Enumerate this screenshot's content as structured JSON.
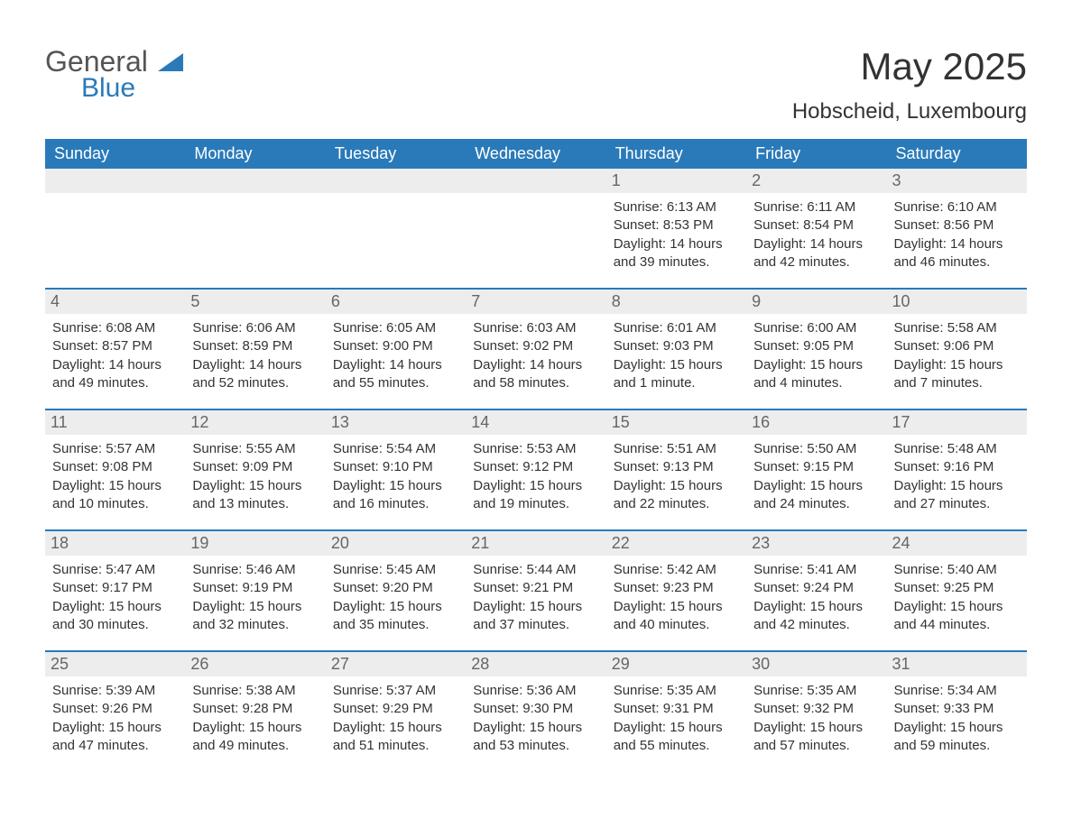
{
  "brand": {
    "general": "General",
    "blue": "Blue"
  },
  "title": {
    "month": "May 2025",
    "location": "Hobscheid, Luxembourg"
  },
  "colors": {
    "header_bg": "#2a7ab9",
    "header_text": "#ffffff",
    "daynum_bg": "#ededed",
    "daynum_text": "#666666",
    "rule": "#2a7ab9",
    "body_text": "#333333"
  },
  "day_headers": [
    "Sunday",
    "Monday",
    "Tuesday",
    "Wednesday",
    "Thursday",
    "Friday",
    "Saturday"
  ],
  "weeks": [
    [
      {
        "n": "",
        "sunrise": "",
        "sunset": "",
        "daylight": "",
        "empty": true
      },
      {
        "n": "",
        "sunrise": "",
        "sunset": "",
        "daylight": "",
        "empty": true
      },
      {
        "n": "",
        "sunrise": "",
        "sunset": "",
        "daylight": "",
        "empty": true
      },
      {
        "n": "",
        "sunrise": "",
        "sunset": "",
        "daylight": "",
        "empty": true
      },
      {
        "n": "1",
        "sunrise": "Sunrise: 6:13 AM",
        "sunset": "Sunset: 8:53 PM",
        "daylight": "Daylight: 14 hours and 39 minutes."
      },
      {
        "n": "2",
        "sunrise": "Sunrise: 6:11 AM",
        "sunset": "Sunset: 8:54 PM",
        "daylight": "Daylight: 14 hours and 42 minutes."
      },
      {
        "n": "3",
        "sunrise": "Sunrise: 6:10 AM",
        "sunset": "Sunset: 8:56 PM",
        "daylight": "Daylight: 14 hours and 46 minutes."
      }
    ],
    [
      {
        "n": "4",
        "sunrise": "Sunrise: 6:08 AM",
        "sunset": "Sunset: 8:57 PM",
        "daylight": "Daylight: 14 hours and 49 minutes."
      },
      {
        "n": "5",
        "sunrise": "Sunrise: 6:06 AM",
        "sunset": "Sunset: 8:59 PM",
        "daylight": "Daylight: 14 hours and 52 minutes."
      },
      {
        "n": "6",
        "sunrise": "Sunrise: 6:05 AM",
        "sunset": "Sunset: 9:00 PM",
        "daylight": "Daylight: 14 hours and 55 minutes."
      },
      {
        "n": "7",
        "sunrise": "Sunrise: 6:03 AM",
        "sunset": "Sunset: 9:02 PM",
        "daylight": "Daylight: 14 hours and 58 minutes."
      },
      {
        "n": "8",
        "sunrise": "Sunrise: 6:01 AM",
        "sunset": "Sunset: 9:03 PM",
        "daylight": "Daylight: 15 hours and 1 minute."
      },
      {
        "n": "9",
        "sunrise": "Sunrise: 6:00 AM",
        "sunset": "Sunset: 9:05 PM",
        "daylight": "Daylight: 15 hours and 4 minutes."
      },
      {
        "n": "10",
        "sunrise": "Sunrise: 5:58 AM",
        "sunset": "Sunset: 9:06 PM",
        "daylight": "Daylight: 15 hours and 7 minutes."
      }
    ],
    [
      {
        "n": "11",
        "sunrise": "Sunrise: 5:57 AM",
        "sunset": "Sunset: 9:08 PM",
        "daylight": "Daylight: 15 hours and 10 minutes."
      },
      {
        "n": "12",
        "sunrise": "Sunrise: 5:55 AM",
        "sunset": "Sunset: 9:09 PM",
        "daylight": "Daylight: 15 hours and 13 minutes."
      },
      {
        "n": "13",
        "sunrise": "Sunrise: 5:54 AM",
        "sunset": "Sunset: 9:10 PM",
        "daylight": "Daylight: 15 hours and 16 minutes."
      },
      {
        "n": "14",
        "sunrise": "Sunrise: 5:53 AM",
        "sunset": "Sunset: 9:12 PM",
        "daylight": "Daylight: 15 hours and 19 minutes."
      },
      {
        "n": "15",
        "sunrise": "Sunrise: 5:51 AM",
        "sunset": "Sunset: 9:13 PM",
        "daylight": "Daylight: 15 hours and 22 minutes."
      },
      {
        "n": "16",
        "sunrise": "Sunrise: 5:50 AM",
        "sunset": "Sunset: 9:15 PM",
        "daylight": "Daylight: 15 hours and 24 minutes."
      },
      {
        "n": "17",
        "sunrise": "Sunrise: 5:48 AM",
        "sunset": "Sunset: 9:16 PM",
        "daylight": "Daylight: 15 hours and 27 minutes."
      }
    ],
    [
      {
        "n": "18",
        "sunrise": "Sunrise: 5:47 AM",
        "sunset": "Sunset: 9:17 PM",
        "daylight": "Daylight: 15 hours and 30 minutes."
      },
      {
        "n": "19",
        "sunrise": "Sunrise: 5:46 AM",
        "sunset": "Sunset: 9:19 PM",
        "daylight": "Daylight: 15 hours and 32 minutes."
      },
      {
        "n": "20",
        "sunrise": "Sunrise: 5:45 AM",
        "sunset": "Sunset: 9:20 PM",
        "daylight": "Daylight: 15 hours and 35 minutes."
      },
      {
        "n": "21",
        "sunrise": "Sunrise: 5:44 AM",
        "sunset": "Sunset: 9:21 PM",
        "daylight": "Daylight: 15 hours and 37 minutes."
      },
      {
        "n": "22",
        "sunrise": "Sunrise: 5:42 AM",
        "sunset": "Sunset: 9:23 PM",
        "daylight": "Daylight: 15 hours and 40 minutes."
      },
      {
        "n": "23",
        "sunrise": "Sunrise: 5:41 AM",
        "sunset": "Sunset: 9:24 PM",
        "daylight": "Daylight: 15 hours and 42 minutes."
      },
      {
        "n": "24",
        "sunrise": "Sunrise: 5:40 AM",
        "sunset": "Sunset: 9:25 PM",
        "daylight": "Daylight: 15 hours and 44 minutes."
      }
    ],
    [
      {
        "n": "25",
        "sunrise": "Sunrise: 5:39 AM",
        "sunset": "Sunset: 9:26 PM",
        "daylight": "Daylight: 15 hours and 47 minutes."
      },
      {
        "n": "26",
        "sunrise": "Sunrise: 5:38 AM",
        "sunset": "Sunset: 9:28 PM",
        "daylight": "Daylight: 15 hours and 49 minutes."
      },
      {
        "n": "27",
        "sunrise": "Sunrise: 5:37 AM",
        "sunset": "Sunset: 9:29 PM",
        "daylight": "Daylight: 15 hours and 51 minutes."
      },
      {
        "n": "28",
        "sunrise": "Sunrise: 5:36 AM",
        "sunset": "Sunset: 9:30 PM",
        "daylight": "Daylight: 15 hours and 53 minutes."
      },
      {
        "n": "29",
        "sunrise": "Sunrise: 5:35 AM",
        "sunset": "Sunset: 9:31 PM",
        "daylight": "Daylight: 15 hours and 55 minutes."
      },
      {
        "n": "30",
        "sunrise": "Sunrise: 5:35 AM",
        "sunset": "Sunset: 9:32 PM",
        "daylight": "Daylight: 15 hours and 57 minutes."
      },
      {
        "n": "31",
        "sunrise": "Sunrise: 5:34 AM",
        "sunset": "Sunset: 9:33 PM",
        "daylight": "Daylight: 15 hours and 59 minutes."
      }
    ]
  ]
}
